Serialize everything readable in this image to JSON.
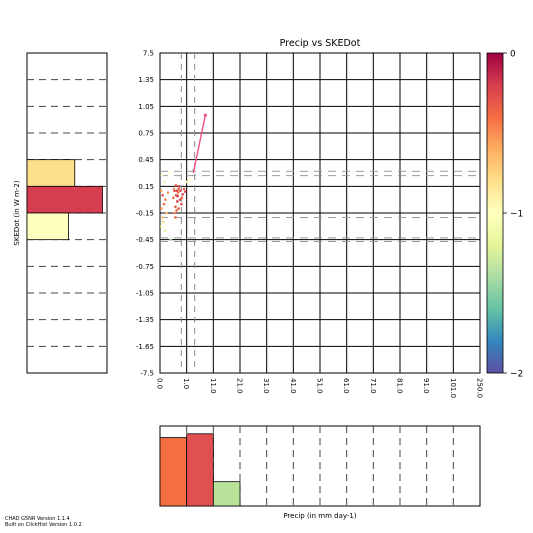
{
  "chart_data": [
    {
      "type": "scatter",
      "title": "Precip vs SKEDot",
      "xlabel": "",
      "ylabel": "",
      "x_bin_edges_labels": [
        "0.0",
        "1.0",
        "11.0",
        "21.0",
        "31.0",
        "41.0",
        "51.0",
        "61.0",
        "71.0",
        "81.0",
        "91.0",
        "101.0",
        "250.0"
      ],
      "y_bin_edges_labels": [
        "7.5",
        "1.35",
        "1.05",
        "0.75",
        "0.45",
        "0.15",
        "-0.15",
        "-0.45",
        "-0.75",
        "-1.05",
        "-1.35",
        "-1.65",
        "-7.5"
      ],
      "vertical_dashed_x": [
        0.8,
        1.3
      ],
      "horizontal_dashed_y": [
        0.32,
        0.27,
        -0.2,
        -0.43,
        -0.47
      ],
      "grid": true,
      "colorbar": {
        "ticks": [
          "0",
          "−1",
          "−2"
        ],
        "values": [
          0,
          -1,
          -2
        ],
        "colormap": [
          "#9e0142",
          "#d53e4f",
          "#f46d43",
          "#fdae61",
          "#fee08b",
          "#ffffbf",
          "#e6f598",
          "#abdda4",
          "#66c2a5",
          "#3288bd",
          "#5e4fa2"
        ]
      },
      "series": [
        {
          "points": [
            {
              "x": 0.1,
              "y": 0.05,
              "c": 0.15
            },
            {
              "x": 0.15,
              "y": -0.05,
              "c": 0.2
            },
            {
              "x": 0.05,
              "y": -0.1,
              "c": 0.25
            },
            {
              "x": 0.2,
              "y": 0.0,
              "c": 0.22
            },
            {
              "x": 0.25,
              "y": -0.15,
              "c": 0.3
            },
            {
              "x": 0.1,
              "y": -0.2,
              "c": 0.35
            },
            {
              "x": 0.05,
              "y": 0.1,
              "c": 0.3
            },
            {
              "x": 0.3,
              "y": 0.08,
              "c": 0.25
            },
            {
              "x": 0.12,
              "y": -0.25,
              "c": 0.4
            },
            {
              "x": 0.18,
              "y": 0.2,
              "c": 0.45
            },
            {
              "x": 0.08,
              "y": 0.28,
              "c": 0.5
            },
            {
              "x": 0.35,
              "y": 0.3,
              "c": 0.5
            },
            {
              "x": 0.05,
              "y": -0.3,
              "c": 0.55
            },
            {
              "x": 0.2,
              "y": -0.35,
              "c": 0.6
            },
            {
              "x": 0.55,
              "y": 0.1,
              "c": 0.12
            },
            {
              "x": 0.6,
              "y": 0.05,
              "c": 0.15
            },
            {
              "x": 0.65,
              "y": -0.02,
              "c": 0.1
            },
            {
              "x": 0.7,
              "y": 0.12,
              "c": 0.18
            },
            {
              "x": 0.75,
              "y": 0.0,
              "c": 0.12
            },
            {
              "x": 0.58,
              "y": -0.08,
              "c": 0.16
            },
            {
              "x": 0.68,
              "y": 0.08,
              "c": 0.2
            },
            {
              "x": 0.8,
              "y": -0.05,
              "c": 0.14
            },
            {
              "x": 0.62,
              "y": -0.12,
              "c": 0.18
            },
            {
              "x": 0.72,
              "y": 0.15,
              "c": 0.1
            },
            {
              "x": 0.5,
              "y": 0.02,
              "c": 0.2
            },
            {
              "x": 0.66,
              "y": 0.04,
              "c": 0.08
            },
            {
              "x": 0.77,
              "y": 0.1,
              "c": 0.15
            },
            {
              "x": 0.54,
              "y": -0.15,
              "c": 0.22
            },
            {
              "x": 0.85,
              "y": 0.06,
              "c": 0.12
            },
            {
              "x": 0.9,
              "y": 0.12,
              "c": 0.18
            },
            {
              "x": 0.95,
              "y": 0.09,
              "c": 0.1
            },
            {
              "x": 0.82,
              "y": 0.02,
              "c": 0.2
            },
            {
              "x": 0.64,
              "y": 0.1,
              "c": 0.12
            },
            {
              "x": 0.7,
              "y": -0.1,
              "c": 0.16
            },
            {
              "x": 0.6,
              "y": 0.16,
              "c": 0.14
            },
            {
              "x": 0.52,
              "y": 0.12,
              "c": 0.24
            },
            {
              "x": 0.58,
              "y": -0.2,
              "c": 0.2
            },
            {
              "x": 1.1,
              "y": 0.22,
              "c": 0.5
            },
            {
              "x": 1.25,
              "y": 0.33,
              "c": 0.75
            },
            {
              "x": 1.0,
              "y": 0.2,
              "c": 0.45
            },
            {
              "x": 0.4,
              "y": -0.45,
              "c": 0.7
            }
          ]
        },
        {
          "line": [
            {
              "x": 1.25,
              "y": 0.3
            },
            {
              "x": 1.7,
              "y": 0.95
            }
          ],
          "color": "#f0527f"
        }
      ]
    },
    {
      "type": "bar",
      "orientation": "horizontal",
      "ylabel": "SKEDot (in W m-2)",
      "categories": [
        "0.45",
        "0.15",
        "-0.15"
      ],
      "values": [
        0.62,
        0.98,
        0.54
      ],
      "colors": [
        "#fee08b",
        "#d53e4f",
        "#ffffbf"
      ]
    },
    {
      "type": "bar",
      "xlabel": "Precip (in mm day-1)",
      "categories": [
        "0.0",
        "1.0",
        "11.0"
      ],
      "values": [
        0.9,
        0.95,
        0.32
      ],
      "colors": [
        "#f46d43",
        "#e05050",
        "#b8e29a"
      ]
    }
  ],
  "footer": {
    "line1": "CHAD G5NR Version 1.1.4",
    "line2": "Built on ClickHist Version 1.0.2"
  }
}
